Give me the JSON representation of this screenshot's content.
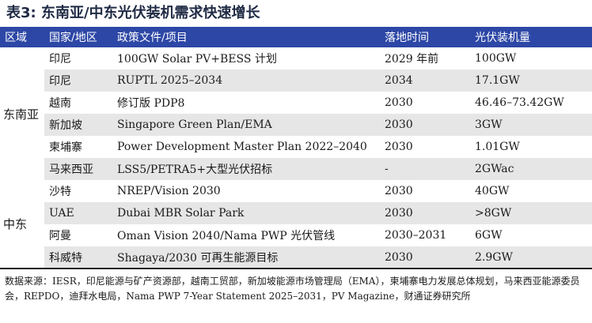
{
  "title": "表3: 东南亚/中东光伏装机需求快速增长",
  "headers": [
    "区域",
    "国家/地区",
    "政策文件/项目",
    "落地时间",
    "光伏装机量"
  ],
  "regions": [
    "东南亚",
    "中东"
  ],
  "rows": [
    {
      "country": "印尼",
      "policy": "100GW Solar PV+BESS 计划",
      "time": "2029 年前",
      "capacity": "100GW"
    },
    {
      "country": "印尼",
      "policy": "RUPTL 2025–2034",
      "time": "2034",
      "capacity": "17.1GW"
    },
    {
      "country": "越南",
      "policy": "修订版 PDP8",
      "time": "2030",
      "capacity": "46.46–73.42GW"
    },
    {
      "country": "新加坡",
      "policy": "Singapore Green Plan/EMA",
      "time": "2030",
      "capacity": "3GW"
    },
    {
      "country": "柬埔寨",
      "policy": "Power Development Master Plan 2022–2040",
      "time": "2030",
      "capacity": "1.01GW"
    },
    {
      "country": "马来西亚",
      "policy": "LSS5/PETRA5+大型光伏招标",
      "time": "-",
      "capacity": "2GWac"
    },
    {
      "country": "沙特",
      "policy": "NREP/Vision 2030",
      "time": "2030",
      "capacity": "40GW"
    },
    {
      "country": "UAE",
      "policy": "Dubai MBR Solar Park",
      "time": "2030",
      "capacity": ">8GW"
    },
    {
      "country": "阿曼",
      "policy": "Oman Vision 2040/Nama PWP 光伏管线",
      "time": "2030–2031",
      "capacity": "6GW"
    },
    {
      "country": "科威特",
      "policy": "Shagaya/2030 可再生能源目标",
      "time": "2030",
      "capacity": "2.9GW"
    }
  ],
  "source": "数据来源：IESR，印尼能源与矿产资源部，越南工贸部，新加坡能源市场管理局（EMA），柬埔寨电力发展总体规划，马来西亚能源委员会，REPDO，迪拜水电局，Nama PWP 7-Year Statement 2025–2031，PV Magazine，财通证券研究所",
  "colors": {
    "header_bg": "#2d47a6",
    "alt_row_bg": "#e6e6e6"
  }
}
